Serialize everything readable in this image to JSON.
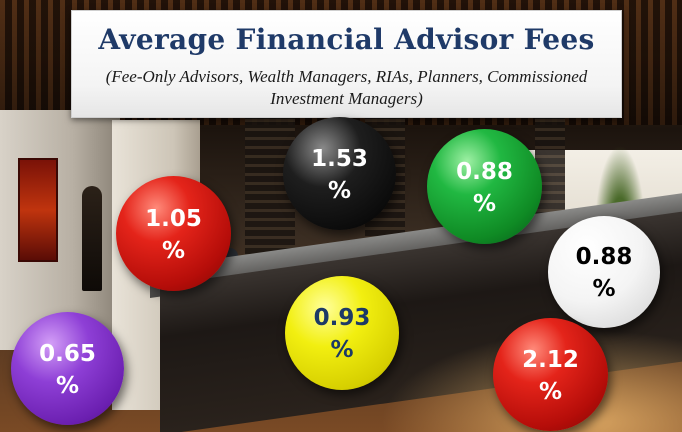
{
  "title": "Average Financial Advisor Fees",
  "subtitle": "(Fee-Only Advisors,  Wealth Managers, RIAs, Planners, Commissioned Investment Managers)",
  "colors": {
    "title": "#1f3a68",
    "red": "#e4241a",
    "black": "#000000",
    "green": "#21b842",
    "white": "#ffffff",
    "yellow": "#f2ef10",
    "purple": "#8e3fd6"
  },
  "chart_data": {
    "type": "bubble",
    "title": "Average Financial Advisor Fees",
    "subtitle": "(Fee-Only Advisors,  Wealth Managers, RIAs, Planners, Commissioned Investment Managers)",
    "unit": "%",
    "values": [
      {
        "value": 1.05,
        "label": "1.05\n%",
        "color": "red"
      },
      {
        "value": 1.53,
        "label": "1.53\n%",
        "color": "black"
      },
      {
        "value": 0.88,
        "label": "0.88\n%",
        "color": "green"
      },
      {
        "value": 0.88,
        "label": "0.88\n%",
        "color": "white"
      },
      {
        "value": 0.93,
        "label": "0.93\n%",
        "color": "yellow"
      },
      {
        "value": 0.65,
        "label": "0.65\n%",
        "color": "purple"
      },
      {
        "value": 2.12,
        "label": "2.12\n%",
        "color": "red"
      }
    ]
  }
}
